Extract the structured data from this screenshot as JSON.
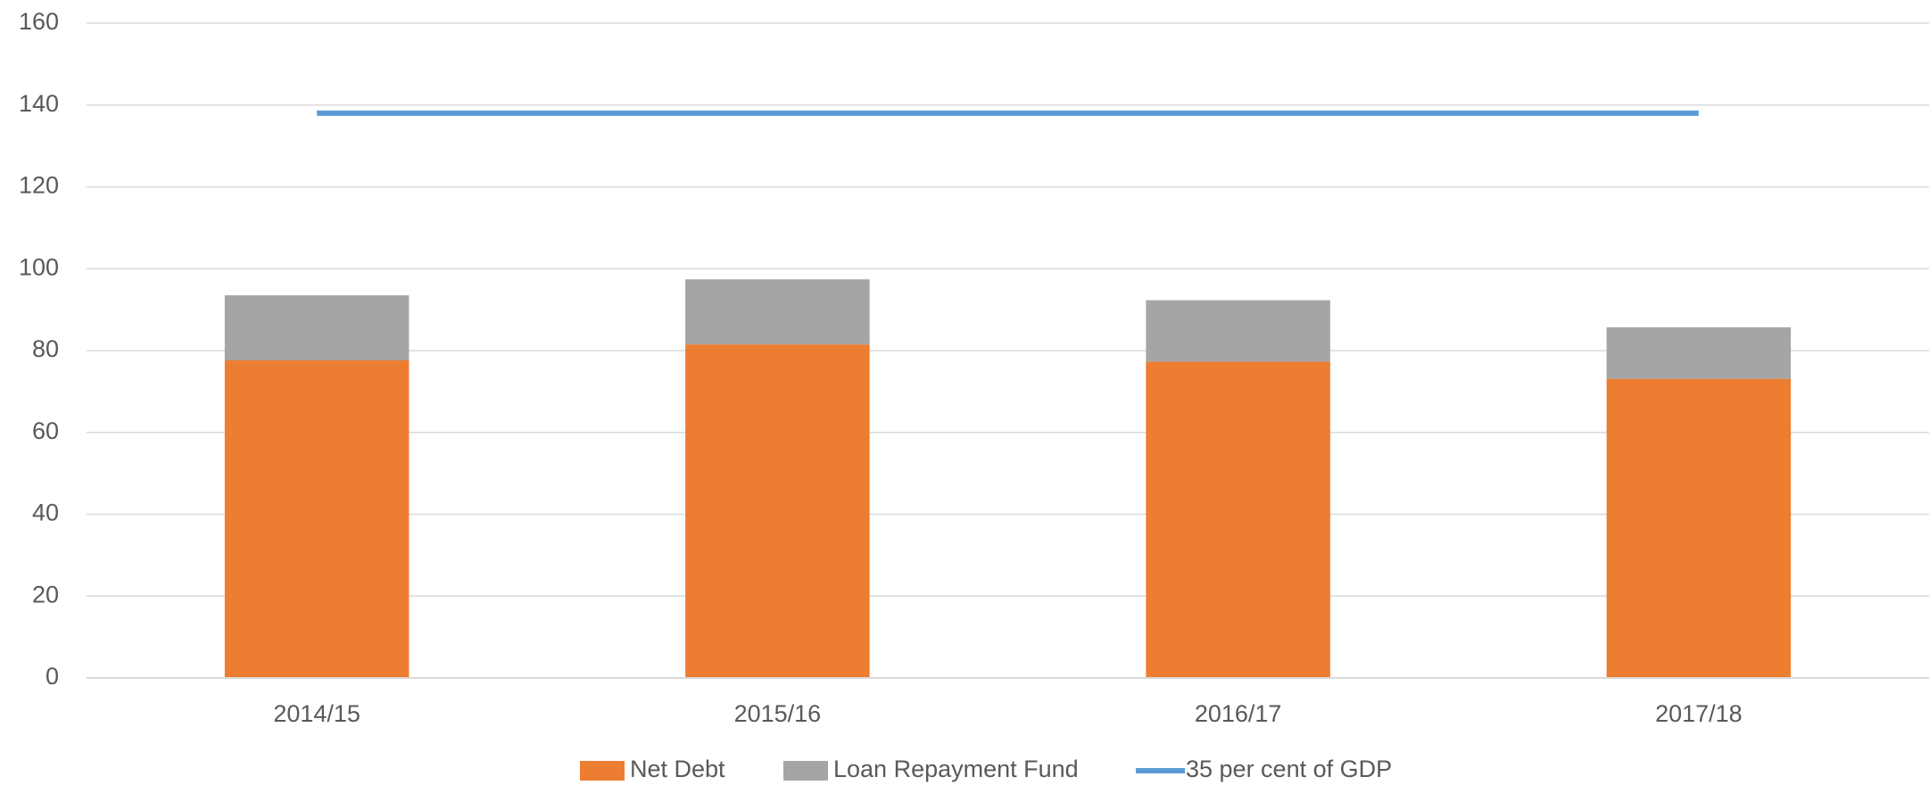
{
  "chart_data": {
    "type": "bar",
    "stacked": true,
    "categories": [
      "2014/15",
      "2015/16",
      "2016/17",
      "2017/18"
    ],
    "series": [
      {
        "name": "Net Debt",
        "color": "#ed7d31",
        "values": [
          77.6,
          81.5,
          77.3,
          73.1
        ]
      },
      {
        "name": "Loan Repayment Fund",
        "color": "#a5a5a5",
        "values": [
          15.9,
          15.9,
          15.0,
          12.6
        ]
      },
      {
        "name": "35 per cent of GDP",
        "color": "#5b9bd5",
        "type": "line",
        "values": [
          138,
          138,
          138,
          138
        ]
      }
    ],
    "ylim": [
      0,
      160
    ],
    "yticks": [
      0,
      20,
      40,
      60,
      80,
      100,
      120,
      140,
      160
    ],
    "grid": true,
    "legend": "bottom"
  }
}
